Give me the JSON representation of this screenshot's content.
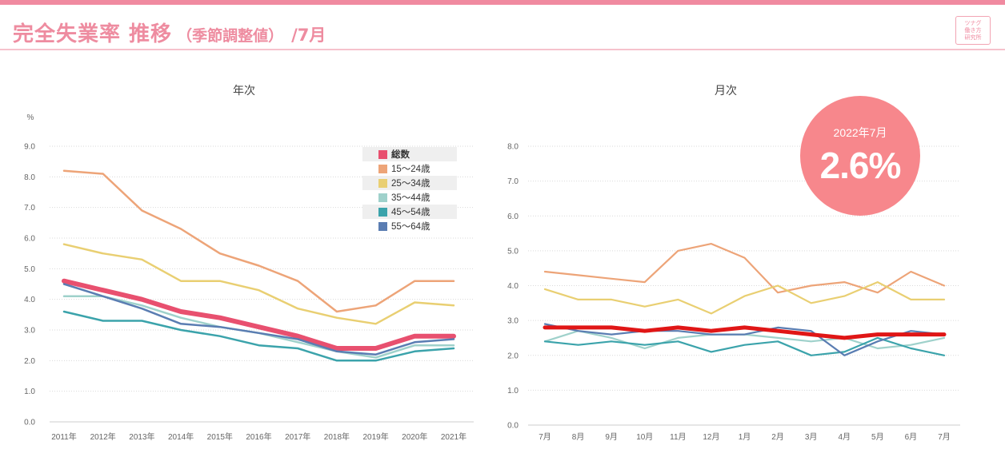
{
  "header": {
    "title": "完全失業率 推移",
    "subtitle": "（季節調整値）",
    "month": "/7月",
    "logo_lines": [
      "ツナグ",
      "働き方",
      "研究所"
    ]
  },
  "highlight": {
    "label": "2022年7月",
    "value": "2.6%"
  },
  "colors": {
    "total": "#e8506f",
    "age15_24": "#eda478",
    "age25_34": "#e9cf72",
    "age35_44": "#9fd1cb",
    "age45_54": "#3ba3ab",
    "age55_64": "#5a7db2",
    "total_monthly": "#e01616",
    "bubble": "#f7878c"
  },
  "chart_data": [
    {
      "type": "line",
      "title": "年次",
      "ylabel": "%",
      "ylim": [
        0,
        9
      ],
      "yticks": [
        "0.0",
        "1.0",
        "2.0",
        "3.0",
        "4.0",
        "5.0",
        "6.0",
        "7.0",
        "8.0",
        "9.0"
      ],
      "grid": true,
      "legend_position": "top-right",
      "categories": [
        "2011年",
        "2012年",
        "2013年",
        "2014年",
        "2015年",
        "2016年",
        "2017年",
        "2018年",
        "2019年",
        "2020年",
        "2021年"
      ],
      "series": [
        {
          "name": "総数",
          "key": "total",
          "values": [
            4.6,
            4.3,
            4.0,
            3.6,
            3.4,
            3.1,
            2.8,
            2.4,
            2.4,
            2.8,
            2.8
          ]
        },
        {
          "name": "15～24歳",
          "key": "age15_24",
          "values": [
            8.2,
            8.1,
            6.9,
            6.3,
            5.5,
            5.1,
            4.6,
            3.6,
            3.8,
            4.6,
            4.6
          ]
        },
        {
          "name": "25～34歳",
          "key": "age25_34",
          "values": [
            5.8,
            5.5,
            5.3,
            4.6,
            4.6,
            4.3,
            3.7,
            3.4,
            3.2,
            3.9,
            3.8
          ]
        },
        {
          "name": "35～44歳",
          "key": "age35_44",
          "values": [
            4.1,
            4.1,
            3.8,
            3.4,
            3.1,
            2.9,
            2.6,
            2.3,
            2.1,
            2.5,
            2.5
          ]
        },
        {
          "name": "45～54歳",
          "key": "age45_54",
          "values": [
            3.6,
            3.3,
            3.3,
            3.0,
            2.8,
            2.5,
            2.4,
            2.0,
            2.0,
            2.3,
            2.4
          ]
        },
        {
          "name": "55～64歳",
          "key": "age55_64",
          "values": [
            4.5,
            4.1,
            3.7,
            3.2,
            3.1,
            2.9,
            2.7,
            2.3,
            2.2,
            2.6,
            2.7
          ]
        }
      ]
    },
    {
      "type": "line",
      "title": "月次",
      "ylim": [
        0,
        8
      ],
      "yticks": [
        "0.0",
        "1.0",
        "2.0",
        "3.0",
        "4.0",
        "5.0",
        "6.0",
        "7.0",
        "8.0"
      ],
      "grid": true,
      "categories": [
        "7月",
        "8月",
        "9月",
        "10月",
        "11月",
        "12月",
        "1月",
        "2月",
        "3月",
        "4月",
        "5月",
        "6月",
        "7月"
      ],
      "series": [
        {
          "name": "15～24歳",
          "key": "age15_24",
          "values": [
            4.4,
            4.3,
            4.2,
            4.1,
            5.0,
            5.2,
            4.8,
            3.8,
            4.0,
            4.1,
            3.8,
            4.4,
            4.0
          ]
        },
        {
          "name": "25～34歳",
          "key": "age25_34",
          "values": [
            3.9,
            3.6,
            3.6,
            3.4,
            3.6,
            3.2,
            3.7,
            4.0,
            3.5,
            3.7,
            4.1,
            3.6,
            3.6
          ]
        },
        {
          "name": "35～44歳",
          "key": "age35_44",
          "values": [
            2.4,
            2.7,
            2.5,
            2.2,
            2.5,
            2.6,
            2.6,
            2.5,
            2.4,
            2.5,
            2.2,
            2.3,
            2.5
          ]
        },
        {
          "name": "45～54歳",
          "key": "age45_54",
          "values": [
            2.4,
            2.3,
            2.4,
            2.3,
            2.4,
            2.1,
            2.3,
            2.4,
            2.0,
            2.1,
            2.5,
            2.2,
            2.0
          ]
        },
        {
          "name": "55～64歳",
          "key": "age55_64",
          "values": [
            2.9,
            2.7,
            2.6,
            2.7,
            2.7,
            2.6,
            2.6,
            2.8,
            2.7,
            2.0,
            2.4,
            2.7,
            2.6
          ]
        },
        {
          "name": "総数",
          "key": "total_monthly",
          "values": [
            2.8,
            2.8,
            2.8,
            2.7,
            2.8,
            2.7,
            2.8,
            2.7,
            2.6,
            2.5,
            2.6,
            2.6,
            2.6
          ]
        }
      ]
    }
  ]
}
